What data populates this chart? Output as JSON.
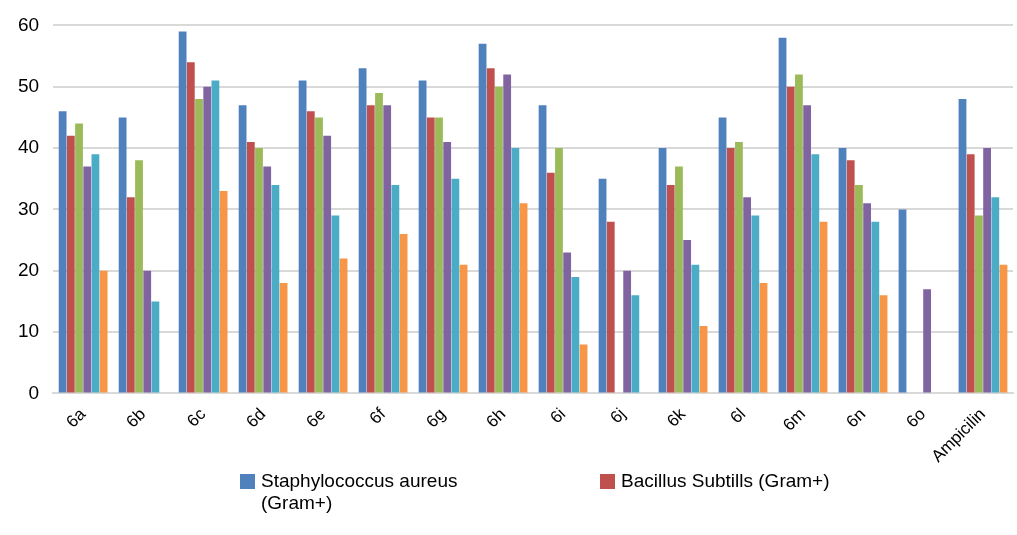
{
  "chart_data": {
    "type": "bar",
    "categories": [
      "6a",
      "6b",
      "6c",
      "6d",
      "6e",
      "6f",
      "6g",
      "6h",
      "6i",
      "6j",
      "6k",
      "6l",
      "6m",
      "6n",
      "6o",
      "Ampicilin"
    ],
    "series": [
      {
        "name": "Staphylococcus aureus (Gram+)",
        "color": "#4f81bd",
        "values": [
          46,
          45,
          59,
          47,
          51,
          53,
          51,
          57,
          47,
          35,
          40,
          45,
          58,
          40,
          30,
          48
        ]
      },
      {
        "name": "Bacillus Subtills (Gram+)",
        "color": "#c0504d",
        "values": [
          42,
          32,
          54,
          41,
          46,
          47,
          45,
          53,
          36,
          28,
          34,
          40,
          50,
          38,
          0,
          39
        ]
      },
      {
        "color": "#9bbb59",
        "values": [
          44,
          38,
          48,
          40,
          45,
          49,
          45,
          50,
          40,
          0,
          37,
          41,
          52,
          34,
          0,
          29
        ]
      },
      {
        "color": "#8064a2",
        "values": [
          37,
          20,
          50,
          37,
          42,
          47,
          41,
          52,
          23,
          20,
          25,
          32,
          47,
          31,
          17,
          40
        ]
      },
      {
        "color": "#4bacc6",
        "values": [
          39,
          15,
          51,
          34,
          29,
          34,
          35,
          40,
          19,
          16,
          21,
          29,
          39,
          28,
          0,
          32
        ]
      },
      {
        "color": "#f79646",
        "values": [
          20,
          0,
          33,
          18,
          22,
          26,
          21,
          31,
          8,
          0,
          11,
          18,
          28,
          16,
          0,
          21
        ]
      }
    ],
    "ylim": [
      0,
      60
    ],
    "yticks": [
      0,
      10,
      20,
      30,
      40,
      50,
      60
    ],
    "grid": "y",
    "legend": "bottom"
  }
}
